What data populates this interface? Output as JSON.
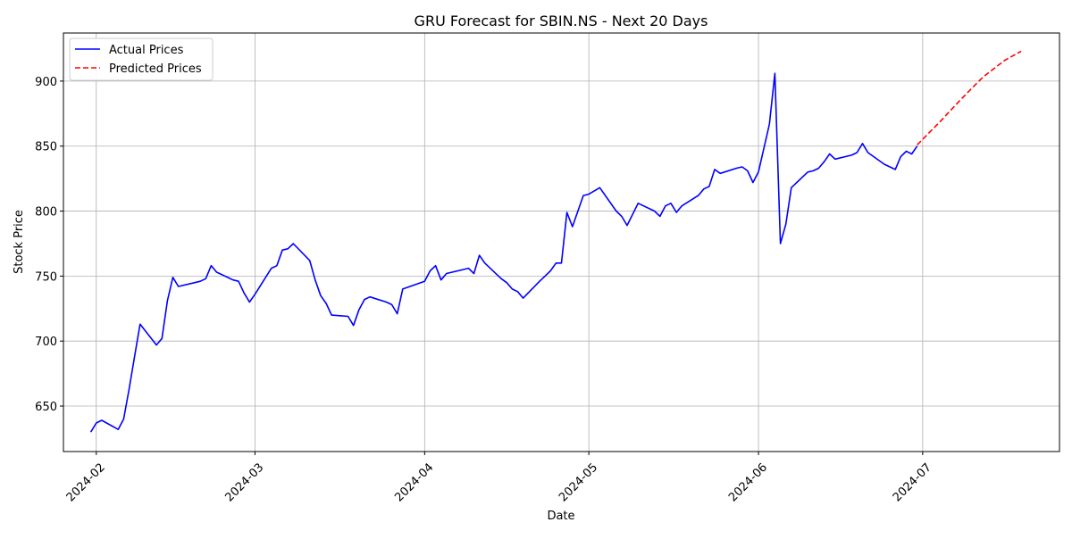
{
  "chart_data": {
    "type": "line",
    "title": "GRU Forecast for SBIN.NS - Next 20 Days",
    "xlabel": "Date",
    "ylabel": "Stock Price",
    "xlim": [
      "2024-01-26",
      "2024-07-26"
    ],
    "ylim": [
      615,
      937
    ],
    "grid": true,
    "legend_position": "top-left",
    "x_ticks": [
      "2024-02-01",
      "2024-03-01",
      "2024-04-01",
      "2024-05-01",
      "2024-06-01",
      "2024-07-01"
    ],
    "x_tick_labels": [
      "2024-02",
      "2024-03",
      "2024-04",
      "2024-05",
      "2024-06",
      "2024-07"
    ],
    "y_ticks": [
      650,
      700,
      750,
      800,
      850,
      900
    ],
    "series": [
      {
        "name": "Actual Prices",
        "color": "#0000ff",
        "style": "solid",
        "points": [
          [
            "2024-01-31",
            630
          ],
          [
            "2024-02-01",
            637
          ],
          [
            "2024-02-02",
            639
          ],
          [
            "2024-02-05",
            632
          ],
          [
            "2024-02-06",
            640
          ],
          [
            "2024-02-07",
            663
          ],
          [
            "2024-02-08",
            688
          ],
          [
            "2024-02-09",
            713
          ],
          [
            "2024-02-12",
            697
          ],
          [
            "2024-02-13",
            702
          ],
          [
            "2024-02-14",
            731
          ],
          [
            "2024-02-15",
            749
          ],
          [
            "2024-02-16",
            742
          ],
          [
            "2024-02-19",
            745
          ],
          [
            "2024-02-20",
            746
          ],
          [
            "2024-02-21",
            748
          ],
          [
            "2024-02-22",
            758
          ],
          [
            "2024-02-23",
            753
          ],
          [
            "2024-02-26",
            747
          ],
          [
            "2024-02-27",
            746
          ],
          [
            "2024-02-28",
            737
          ],
          [
            "2024-02-29",
            730
          ],
          [
            "2024-03-01",
            736
          ],
          [
            "2024-03-04",
            756
          ],
          [
            "2024-03-05",
            758
          ],
          [
            "2024-03-06",
            770
          ],
          [
            "2024-03-07",
            771
          ],
          [
            "2024-03-08",
            775
          ],
          [
            "2024-03-11",
            762
          ],
          [
            "2024-03-12",
            747
          ],
          [
            "2024-03-13",
            735
          ],
          [
            "2024-03-14",
            729
          ],
          [
            "2024-03-15",
            720
          ],
          [
            "2024-03-18",
            719
          ],
          [
            "2024-03-19",
            712
          ],
          [
            "2024-03-20",
            724
          ],
          [
            "2024-03-21",
            732
          ],
          [
            "2024-03-22",
            734
          ],
          [
            "2024-03-25",
            730
          ],
          [
            "2024-03-26",
            728
          ],
          [
            "2024-03-27",
            721
          ],
          [
            "2024-03-28",
            740
          ],
          [
            "2024-04-01",
            746
          ],
          [
            "2024-04-02",
            754
          ],
          [
            "2024-04-03",
            758
          ],
          [
            "2024-04-04",
            747
          ],
          [
            "2024-04-05",
            752
          ],
          [
            "2024-04-08",
            755
          ],
          [
            "2024-04-09",
            756
          ],
          [
            "2024-04-10",
            752
          ],
          [
            "2024-04-11",
            766
          ],
          [
            "2024-04-12",
            760
          ],
          [
            "2024-04-15",
            748
          ],
          [
            "2024-04-16",
            745
          ],
          [
            "2024-04-17",
            740
          ],
          [
            "2024-04-18",
            738
          ],
          [
            "2024-04-19",
            733
          ],
          [
            "2024-04-22",
            746
          ],
          [
            "2024-04-23",
            750
          ],
          [
            "2024-04-24",
            754
          ],
          [
            "2024-04-25",
            760
          ],
          [
            "2024-04-26",
            760
          ],
          [
            "2024-04-27",
            799
          ],
          [
            "2024-04-28",
            788
          ],
          [
            "2024-04-30",
            812
          ],
          [
            "2024-05-01",
            813
          ],
          [
            "2024-05-03",
            818
          ],
          [
            "2024-05-06",
            800
          ],
          [
            "2024-05-07",
            796
          ],
          [
            "2024-05-08",
            789
          ],
          [
            "2024-05-10",
            806
          ],
          [
            "2024-05-13",
            800
          ],
          [
            "2024-05-14",
            796
          ],
          [
            "2024-05-15",
            804
          ],
          [
            "2024-05-16",
            806
          ],
          [
            "2024-05-17",
            799
          ],
          [
            "2024-05-18",
            804
          ],
          [
            "2024-05-21",
            812
          ],
          [
            "2024-05-22",
            817
          ],
          [
            "2024-05-23",
            819
          ],
          [
            "2024-05-24",
            832
          ],
          [
            "2024-05-25",
            829
          ],
          [
            "2024-05-28",
            833
          ],
          [
            "2024-05-29",
            834
          ],
          [
            "2024-05-30",
            831
          ],
          [
            "2024-05-31",
            822
          ],
          [
            "2024-06-01",
            830
          ],
          [
            "2024-06-03",
            867
          ],
          [
            "2024-06-04",
            906
          ],
          [
            "2024-06-05",
            775
          ],
          [
            "2024-06-06",
            790
          ],
          [
            "2024-06-07",
            818
          ],
          [
            "2024-06-10",
            830
          ],
          [
            "2024-06-11",
            831
          ],
          [
            "2024-06-12",
            833
          ],
          [
            "2024-06-13",
            838
          ],
          [
            "2024-06-14",
            844
          ],
          [
            "2024-06-15",
            840
          ],
          [
            "2024-06-18",
            843
          ],
          [
            "2024-06-19",
            845
          ],
          [
            "2024-06-20",
            852
          ],
          [
            "2024-06-21",
            845
          ],
          [
            "2024-06-24",
            836
          ],
          [
            "2024-06-25",
            834
          ],
          [
            "2024-06-26",
            832
          ],
          [
            "2024-06-27",
            842
          ],
          [
            "2024-06-28",
            846
          ],
          [
            "2024-06-29",
            844
          ],
          [
            "2024-06-30",
            850
          ]
        ]
      },
      {
        "name": "Predicted Prices",
        "color": "#ff0000",
        "style": "dashed",
        "points": [
          [
            "2024-06-30",
            851
          ],
          [
            "2024-07-04",
            868
          ],
          [
            "2024-07-08",
            886
          ],
          [
            "2024-07-12",
            903
          ],
          [
            "2024-07-16",
            916
          ],
          [
            "2024-07-19",
            923
          ]
        ]
      }
    ]
  }
}
